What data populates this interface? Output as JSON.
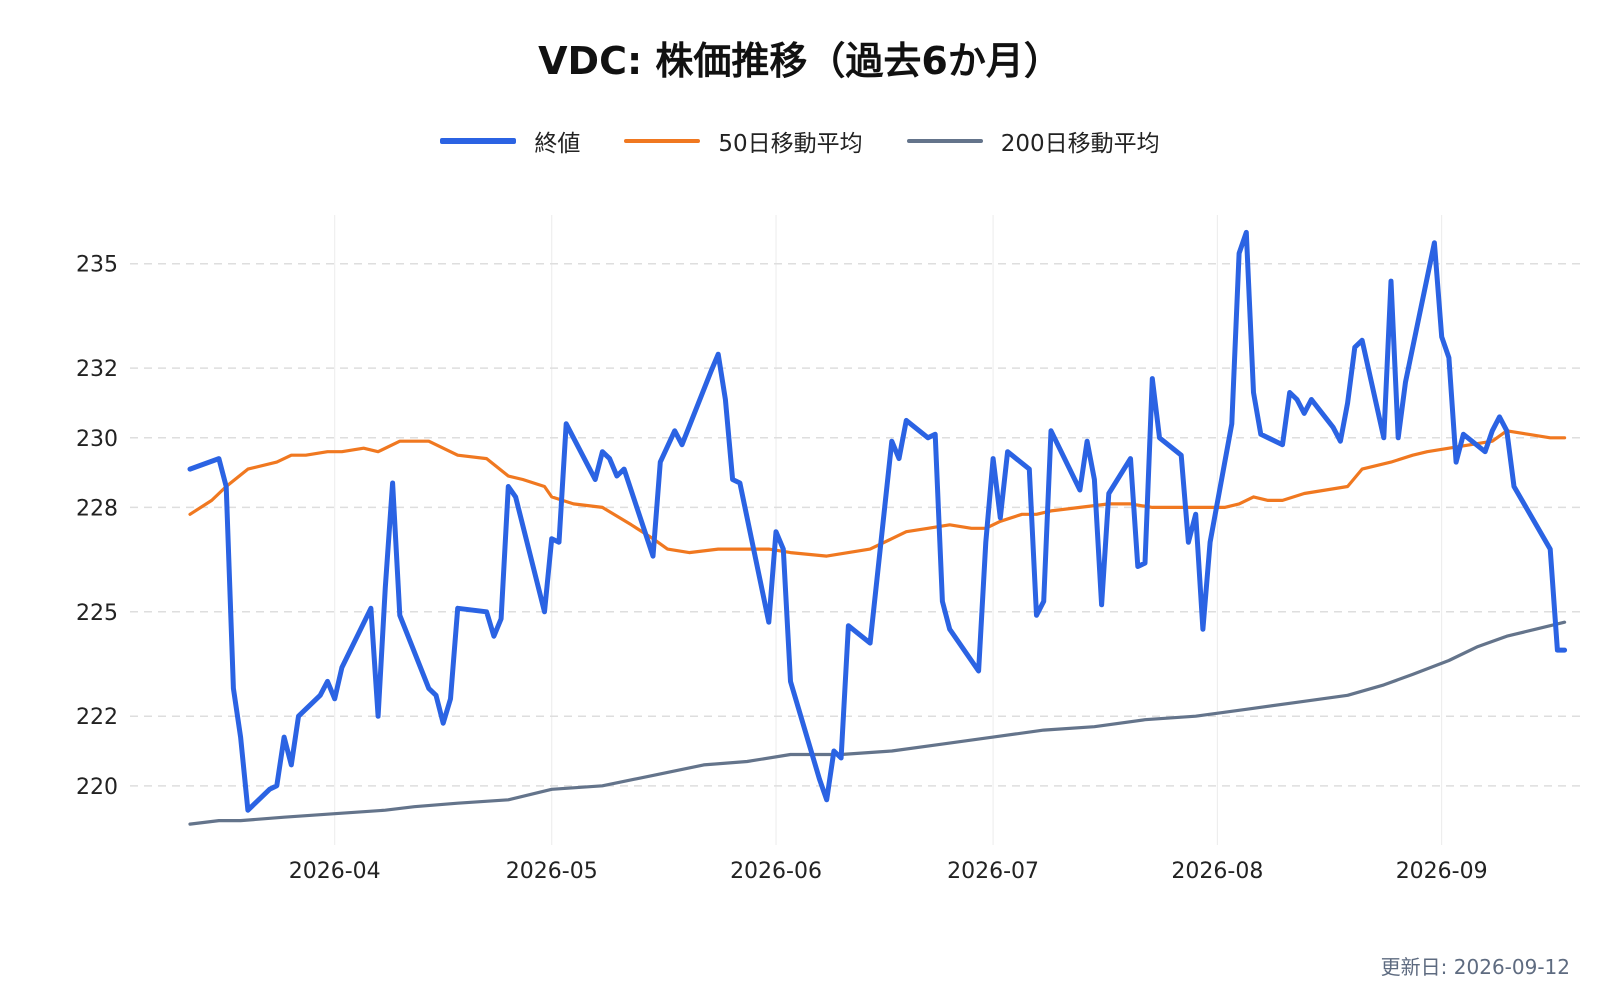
{
  "chart_data": {
    "type": "line",
    "title": "VDC: 株価推移（過去6か月）",
    "xlabel": "",
    "ylabel": "",
    "x_range": [
      "2026-03-12",
      "2026-09-11"
    ],
    "x_ticks": [
      "2026-04",
      "2026-05",
      "2026-06",
      "2026-07",
      "2026-08",
      "2026-09"
    ],
    "y_ticks": [
      220,
      222,
      225,
      228,
      230,
      232,
      235
    ],
    "ylim": [
      218.3,
      236.4
    ],
    "grid": true,
    "legend_position": "top-center",
    "series": [
      {
        "name": "終値",
        "color": "#2b63e3",
        "points": [
          [
            "2026-03-12",
            229.1
          ],
          [
            "2026-03-16",
            229.4
          ],
          [
            "2026-03-17",
            228.6
          ],
          [
            "2026-03-18",
            222.8
          ],
          [
            "2026-03-19",
            221.4
          ],
          [
            "2026-03-20",
            219.3
          ],
          [
            "2026-03-23",
            219.9
          ],
          [
            "2026-03-24",
            220.0
          ],
          [
            "2026-03-25",
            221.4
          ],
          [
            "2026-03-26",
            220.6
          ],
          [
            "2026-03-27",
            222.0
          ],
          [
            "2026-03-30",
            222.6
          ],
          [
            "2026-03-31",
            223.0
          ],
          [
            "2026-04-01",
            222.5
          ],
          [
            "2026-04-02",
            223.4
          ],
          [
            "2026-04-06",
            225.1
          ],
          [
            "2026-04-07",
            222.0
          ],
          [
            "2026-04-08",
            225.7
          ],
          [
            "2026-04-09",
            228.7
          ],
          [
            "2026-04-10",
            224.9
          ],
          [
            "2026-04-14",
            222.8
          ],
          [
            "2026-04-15",
            222.6
          ],
          [
            "2026-04-16",
            221.8
          ],
          [
            "2026-04-17",
            222.5
          ],
          [
            "2026-04-18",
            225.1
          ],
          [
            "2026-04-22",
            225.0
          ],
          [
            "2026-04-23",
            224.3
          ],
          [
            "2026-04-24",
            224.8
          ],
          [
            "2026-04-25",
            228.6
          ],
          [
            "2026-04-26",
            228.3
          ],
          [
            "2026-04-30",
            225.0
          ],
          [
            "2026-05-01",
            227.1
          ],
          [
            "2026-05-02",
            227.0
          ],
          [
            "2026-05-03",
            230.4
          ],
          [
            "2026-05-07",
            228.8
          ],
          [
            "2026-05-08",
            229.6
          ],
          [
            "2026-05-09",
            229.4
          ],
          [
            "2026-05-10",
            228.9
          ],
          [
            "2026-05-11",
            229.1
          ],
          [
            "2026-05-15",
            226.6
          ],
          [
            "2026-05-16",
            229.3
          ],
          [
            "2026-05-18",
            230.2
          ],
          [
            "2026-05-19",
            229.8
          ],
          [
            "2026-05-23",
            231.9
          ],
          [
            "2026-05-24",
            232.4
          ],
          [
            "2026-05-25",
            231.1
          ],
          [
            "2026-05-26",
            228.8
          ],
          [
            "2026-05-27",
            228.7
          ],
          [
            "2026-05-31",
            224.7
          ],
          [
            "2026-06-01",
            227.3
          ],
          [
            "2026-06-02",
            226.8
          ],
          [
            "2026-06-03",
            223.0
          ],
          [
            "2026-06-07",
            220.2
          ],
          [
            "2026-06-08",
            219.6
          ],
          [
            "2026-06-09",
            221.0
          ],
          [
            "2026-06-10",
            220.8
          ],
          [
            "2026-06-11",
            224.6
          ],
          [
            "2026-06-14",
            224.1
          ],
          [
            "2026-06-17",
            229.9
          ],
          [
            "2026-06-18",
            229.4
          ],
          [
            "2026-06-19",
            230.5
          ],
          [
            "2026-06-22",
            230.0
          ],
          [
            "2026-06-23",
            230.1
          ],
          [
            "2026-06-24",
            225.3
          ],
          [
            "2026-06-25",
            224.5
          ],
          [
            "2026-06-29",
            223.3
          ],
          [
            "2026-06-30",
            227.0
          ],
          [
            "2026-07-01",
            229.4
          ],
          [
            "2026-07-02",
            227.7
          ],
          [
            "2026-07-03",
            229.6
          ],
          [
            "2026-07-06",
            229.1
          ],
          [
            "2026-07-07",
            224.9
          ],
          [
            "2026-07-08",
            225.3
          ],
          [
            "2026-07-09",
            230.2
          ],
          [
            "2026-07-13",
            228.5
          ],
          [
            "2026-07-14",
            229.9
          ],
          [
            "2026-07-15",
            228.8
          ],
          [
            "2026-07-16",
            225.2
          ],
          [
            "2026-07-17",
            228.4
          ],
          [
            "2026-07-20",
            229.4
          ],
          [
            "2026-07-21",
            226.3
          ],
          [
            "2026-07-22",
            226.4
          ],
          [
            "2026-07-23",
            231.7
          ],
          [
            "2026-07-24",
            230.0
          ],
          [
            "2026-07-27",
            229.5
          ],
          [
            "2026-07-28",
            227.0
          ],
          [
            "2026-07-29",
            227.8
          ],
          [
            "2026-07-30",
            224.5
          ],
          [
            "2026-07-31",
            227.0
          ],
          [
            "2026-08-03",
            230.4
          ],
          [
            "2026-08-04",
            235.3
          ],
          [
            "2026-08-05",
            235.9
          ],
          [
            "2026-08-06",
            231.3
          ],
          [
            "2026-08-07",
            230.1
          ],
          [
            "2026-08-10",
            229.8
          ],
          [
            "2026-08-11",
            231.3
          ],
          [
            "2026-08-12",
            231.1
          ],
          [
            "2026-08-13",
            230.7
          ],
          [
            "2026-08-14",
            231.1
          ],
          [
            "2026-08-17",
            230.3
          ],
          [
            "2026-08-18",
            229.9
          ],
          [
            "2026-08-19",
            231.0
          ],
          [
            "2026-08-20",
            232.6
          ],
          [
            "2026-08-21",
            232.8
          ],
          [
            "2026-08-24",
            230.0
          ],
          [
            "2026-08-25",
            234.5
          ],
          [
            "2026-08-26",
            230.0
          ],
          [
            "2026-08-27",
            231.6
          ],
          [
            "2026-08-31",
            235.6
          ],
          [
            "2026-09-01",
            232.9
          ],
          [
            "2026-09-02",
            232.3
          ],
          [
            "2026-09-03",
            229.3
          ],
          [
            "2026-09-04",
            230.1
          ],
          [
            "2026-09-07",
            229.6
          ],
          [
            "2026-09-08",
            230.2
          ],
          [
            "2026-09-09",
            230.6
          ],
          [
            "2026-09-10",
            230.2
          ],
          [
            "2026-09-11",
            228.6
          ],
          [
            "2026-09-16",
            226.8
          ],
          [
            "2026-09-17",
            223.9
          ],
          [
            "2026-09-18",
            223.9
          ]
        ]
      },
      {
        "name": "50日移動平均",
        "color": "#f07820",
        "points": [
          [
            "2026-03-12",
            227.8
          ],
          [
            "2026-03-15",
            228.2
          ],
          [
            "2026-03-17",
            228.6
          ],
          [
            "2026-03-20",
            229.1
          ],
          [
            "2026-03-24",
            229.3
          ],
          [
            "2026-03-26",
            229.5
          ],
          [
            "2026-03-28",
            229.5
          ],
          [
            "2026-03-31",
            229.6
          ],
          [
            "2026-04-02",
            229.6
          ],
          [
            "2026-04-05",
            229.7
          ],
          [
            "2026-04-07",
            229.6
          ],
          [
            "2026-04-10",
            229.9
          ],
          [
            "2026-04-14",
            229.9
          ],
          [
            "2026-04-15",
            229.8
          ],
          [
            "2026-04-18",
            229.5
          ],
          [
            "2026-04-22",
            229.4
          ],
          [
            "2026-04-25",
            228.9
          ],
          [
            "2026-04-27",
            228.8
          ],
          [
            "2026-04-30",
            228.6
          ],
          [
            "2026-05-01",
            228.3
          ],
          [
            "2026-05-04",
            228.1
          ],
          [
            "2026-05-08",
            228.0
          ],
          [
            "2026-05-12",
            227.5
          ],
          [
            "2026-05-15",
            227.1
          ],
          [
            "2026-05-17",
            226.8
          ],
          [
            "2026-05-20",
            226.7
          ],
          [
            "2026-05-24",
            226.8
          ],
          [
            "2026-05-27",
            226.8
          ],
          [
            "2026-05-31",
            226.8
          ],
          [
            "2026-06-03",
            226.7
          ],
          [
            "2026-06-08",
            226.6
          ],
          [
            "2026-06-11",
            226.7
          ],
          [
            "2026-06-14",
            226.8
          ],
          [
            "2026-06-17",
            227.1
          ],
          [
            "2026-06-19",
            227.3
          ],
          [
            "2026-06-22",
            227.4
          ],
          [
            "2026-06-25",
            227.5
          ],
          [
            "2026-06-28",
            227.4
          ],
          [
            "2026-06-30",
            227.4
          ],
          [
            "2026-07-02",
            227.6
          ],
          [
            "2026-07-05",
            227.8
          ],
          [
            "2026-07-07",
            227.8
          ],
          [
            "2026-07-09",
            227.9
          ],
          [
            "2026-07-13",
            228.0
          ],
          [
            "2026-07-17",
            228.1
          ],
          [
            "2026-07-20",
            228.1
          ],
          [
            "2026-07-23",
            228.0
          ],
          [
            "2026-07-26",
            228.0
          ],
          [
            "2026-07-30",
            228.0
          ],
          [
            "2026-08-02",
            228.0
          ],
          [
            "2026-08-04",
            228.1
          ],
          [
            "2026-08-06",
            228.3
          ],
          [
            "2026-08-08",
            228.2
          ],
          [
            "2026-08-10",
            228.2
          ],
          [
            "2026-08-13",
            228.4
          ],
          [
            "2026-08-16",
            228.5
          ],
          [
            "2026-08-19",
            228.6
          ],
          [
            "2026-08-21",
            229.1
          ],
          [
            "2026-08-25",
            229.3
          ],
          [
            "2026-08-28",
            229.5
          ],
          [
            "2026-08-30",
            229.6
          ],
          [
            "2026-09-02",
            229.7
          ],
          [
            "2026-09-05",
            229.8
          ],
          [
            "2026-09-08",
            229.9
          ],
          [
            "2026-09-10",
            230.2
          ],
          [
            "2026-09-13",
            230.1
          ],
          [
            "2026-09-16",
            230.0
          ],
          [
            "2026-09-18",
            230.0
          ]
        ]
      },
      {
        "name": "200日移動平均",
        "color": "#64748b",
        "points": [
          [
            "2026-03-12",
            218.9
          ],
          [
            "2026-03-16",
            219.0
          ],
          [
            "2026-03-19",
            219.0
          ],
          [
            "2026-03-25",
            219.1
          ],
          [
            "2026-04-01",
            219.2
          ],
          [
            "2026-04-08",
            219.3
          ],
          [
            "2026-04-12",
            219.4
          ],
          [
            "2026-04-18",
            219.5
          ],
          [
            "2026-04-25",
            219.6
          ],
          [
            "2026-05-01",
            219.9
          ],
          [
            "2026-05-08",
            220.0
          ],
          [
            "2026-05-15",
            220.3
          ],
          [
            "2026-05-22",
            220.6
          ],
          [
            "2026-05-28",
            220.7
          ],
          [
            "2026-06-03",
            220.9
          ],
          [
            "2026-06-10",
            220.9
          ],
          [
            "2026-06-17",
            221.0
          ],
          [
            "2026-06-24",
            221.2
          ],
          [
            "2026-07-01",
            221.4
          ],
          [
            "2026-07-08",
            221.6
          ],
          [
            "2026-07-15",
            221.7
          ],
          [
            "2026-07-22",
            221.9
          ],
          [
            "2026-07-29",
            222.0
          ],
          [
            "2026-08-05",
            222.2
          ],
          [
            "2026-08-12",
            222.4
          ],
          [
            "2026-08-19",
            222.6
          ],
          [
            "2026-08-24",
            222.9
          ],
          [
            "2026-08-28",
            223.2
          ],
          [
            "2026-09-02",
            223.6
          ],
          [
            "2026-09-06",
            224.0
          ],
          [
            "2026-09-10",
            224.3
          ],
          [
            "2026-09-14",
            224.5
          ],
          [
            "2026-09-18",
            224.7
          ]
        ]
      }
    ]
  },
  "legend": [
    {
      "label": "終値",
      "color": "#2b63e3"
    },
    {
      "label": "50日移動平均",
      "color": "#f07820"
    },
    {
      "label": "200日移動平均",
      "color": "#64748b"
    }
  ],
  "footer": {
    "updated": "更新日: 2026-09-12"
  }
}
